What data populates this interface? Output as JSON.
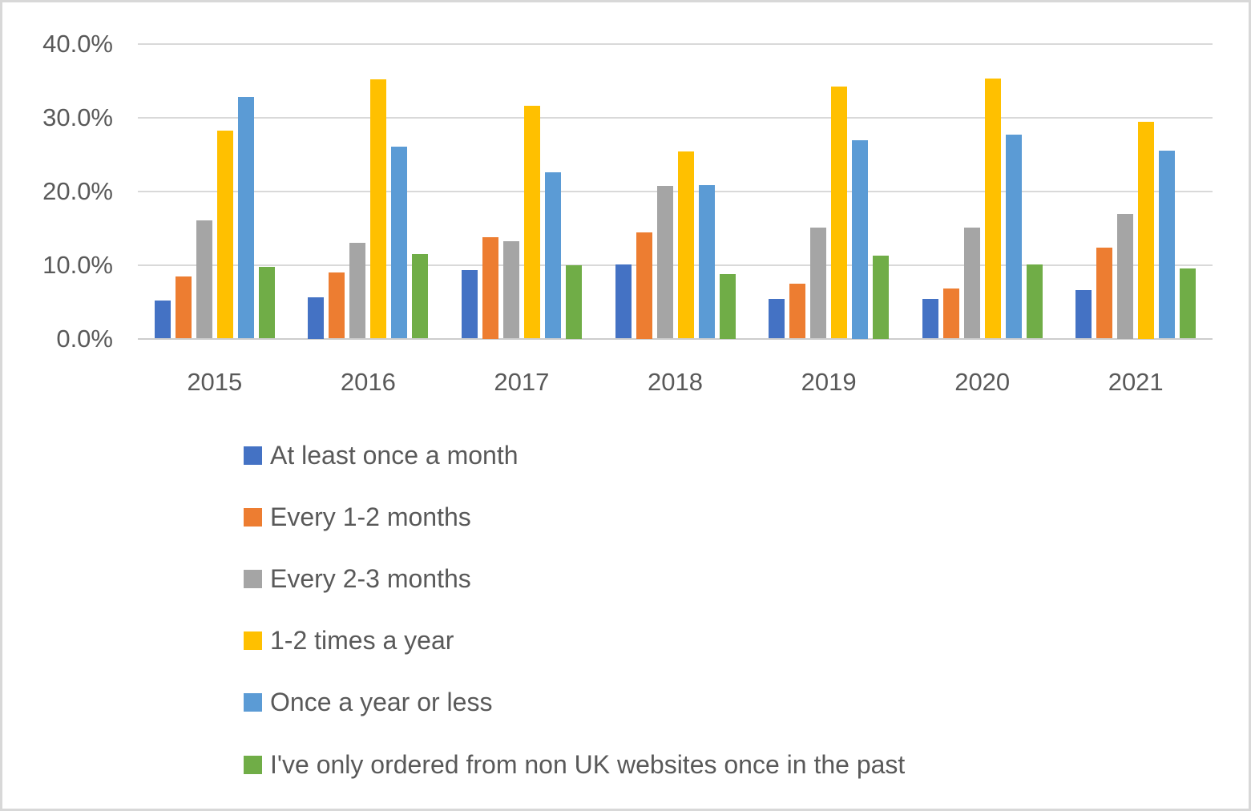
{
  "chart_data": {
    "type": "bar",
    "categories": [
      "2015",
      "2016",
      "2017",
      "2018",
      "2019",
      "2020",
      "2021"
    ],
    "series": [
      {
        "name": "At least once a month",
        "color": "#4472C4",
        "values": [
          5.2,
          5.6,
          9.3,
          10.1,
          5.4,
          5.4,
          6.6
        ]
      },
      {
        "name": "Every 1-2 months",
        "color": "#ED7D31",
        "values": [
          8.4,
          9.0,
          13.8,
          14.4,
          7.4,
          6.8,
          12.3
        ]
      },
      {
        "name": "Every 2-3 months",
        "color": "#A5A5A5",
        "values": [
          16.0,
          13.0,
          13.2,
          20.7,
          15.1,
          15.1,
          16.9
        ]
      },
      {
        "name": "1-2 times a year",
        "color": "#FFC000",
        "values": [
          28.2,
          35.2,
          31.6,
          25.4,
          34.2,
          35.3,
          29.4
        ]
      },
      {
        "name": "Once a year or less",
        "color": "#5B9BD5",
        "values": [
          32.8,
          26.0,
          22.6,
          20.8,
          26.9,
          27.7,
          25.5
        ]
      },
      {
        "name": "I've only ordered from non UK websites once in the past",
        "color": "#70AD47",
        "values": [
          9.7,
          11.5,
          10.0,
          8.8,
          11.3,
          10.1,
          9.5
        ]
      }
    ],
    "y_ticks": [
      {
        "value": 0,
        "label": "0.0%"
      },
      {
        "value": 10,
        "label": "10.0%"
      },
      {
        "value": 20,
        "label": "20.0%"
      },
      {
        "value": 30,
        "label": "30.0%"
      },
      {
        "value": 40,
        "label": "40.0%"
      }
    ],
    "ylim": [
      0,
      40
    ],
    "xlabel": "",
    "ylabel": "",
    "title": "",
    "grid": true,
    "legend_position": "bottom-left"
  },
  "style": {
    "axis_text_color": "#595959",
    "gridline_color": "#D9D9D9",
    "baseline_color": "#CDCDCD",
    "background_color": "#FFFFFF",
    "border_color": "#D8D8D8"
  }
}
